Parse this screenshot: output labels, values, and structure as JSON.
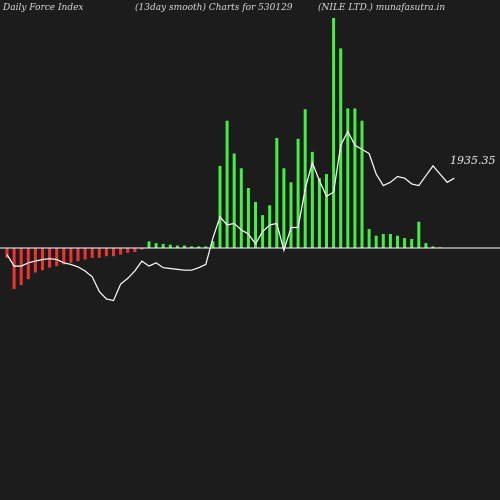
{
  "header": {
    "left": "Daily Force  Index",
    "center": "(13day smooth) Charts for 530129",
    "right": "(NILE LTD.) munafasutra.in"
  },
  "colors": {
    "background": "#1c1c1c",
    "positive": "#44ee44",
    "negative": "#ee3333",
    "zero_line": "#ffffff",
    "smooth_line": "#ffffff"
  },
  "chart_data": {
    "type": "bar",
    "ylim": [
      -75,
      280
    ],
    "grid": false,
    "series": [
      {
        "kind": "bar",
        "values": [
          -12,
          -50,
          -45,
          -38,
          -30,
          -27,
          -24,
          -22,
          -20,
          -18,
          -16,
          -14,
          -12,
          -12,
          -10,
          -10,
          -8,
          -6,
          -5,
          -2,
          8,
          6,
          5,
          4,
          3,
          3,
          2,
          2,
          2,
          8,
          100,
          155,
          115,
          97,
          73,
          56,
          40,
          52,
          134,
          97,
          80,
          133,
          169,
          117,
          85,
          90,
          280,
          243,
          170,
          170,
          155,
          23,
          15,
          17,
          17,
          15,
          12,
          11,
          32,
          6,
          2,
          1
        ],
        "colors": [
          "#ee3333",
          "#44ee44"
        ]
      },
      {
        "kind": "line",
        "label": "1935.35",
        "values": [
          -8,
          -22,
          -22,
          -18,
          -16,
          -14,
          -13,
          -14,
          -18,
          -20,
          -23,
          -28,
          -35,
          -53,
          -62,
          -64,
          -44,
          -37,
          -28,
          -16,
          -22,
          -18,
          -24,
          -25,
          -26,
          -27,
          -27,
          -24,
          -20,
          12,
          38,
          28,
          30,
          22,
          17,
          5,
          20,
          28,
          30,
          -3,
          25,
          25,
          72,
          104,
          82,
          63,
          68,
          125,
          142,
          125,
          120,
          115,
          90,
          76,
          80,
          87,
          85,
          78,
          76,
          88,
          100,
          90,
          80,
          85
        ]
      }
    ]
  }
}
